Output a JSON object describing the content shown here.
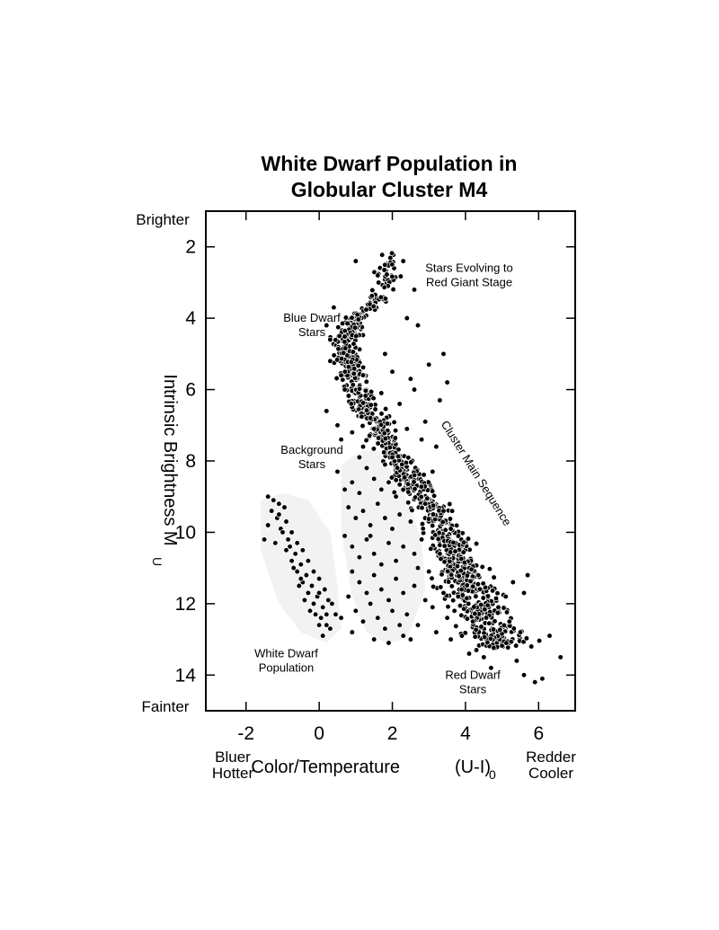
{
  "chart_data": {
    "type": "scatter",
    "title": [
      "White Dwarf Population in",
      "Globular Cluster M4"
    ],
    "xlabel": "Color/Temperature",
    "xlabel_var": "(U-I)",
    "xlabel_sub": "0",
    "ylabel": "Intrinsic Brightness  M",
    "ylabel_sub": "U",
    "xlim": [
      -3.1,
      7.0
    ],
    "ylim": [
      15.0,
      1.0
    ],
    "y_inverted": true,
    "x_ticks": [
      "-2",
      "0",
      "2",
      "4",
      "6"
    ],
    "y_ticks": [
      "2",
      "4",
      "6",
      "8",
      "10",
      "12",
      "14"
    ],
    "x_tick_values": [
      -2,
      0,
      2,
      4,
      6
    ],
    "y_tick_values": [
      2,
      4,
      6,
      8,
      10,
      12,
      14
    ],
    "grid": false,
    "legend": "none",
    "side_labels": {
      "top_left": "Brighter",
      "bottom_left": "Fainter",
      "left_x": [
        "Bluer",
        "Hotter"
      ],
      "right_x": [
        "Redder",
        "Cooler"
      ]
    },
    "regions": [
      {
        "name": "White Dwarf Population",
        "fill": "#f2f2f2",
        "outline": [
          [
            -1.6,
            9.1
          ],
          [
            -1.0,
            8.9
          ],
          [
            -0.3,
            9.1
          ],
          [
            0.3,
            10.0
          ],
          [
            0.5,
            11.5
          ],
          [
            0.6,
            12.7
          ],
          [
            0.2,
            13.1
          ],
          [
            -0.5,
            12.8
          ],
          [
            -1.1,
            12.0
          ],
          [
            -1.6,
            10.5
          ]
        ]
      },
      {
        "name": "Background Stars",
        "fill": "#f2f2f2",
        "outline": [
          [
            0.6,
            8.1
          ],
          [
            1.2,
            7.7
          ],
          [
            1.6,
            7.7
          ],
          [
            2.3,
            8.8
          ],
          [
            2.8,
            10.2
          ],
          [
            2.9,
            11.6
          ],
          [
            2.4,
            13.0
          ],
          [
            1.8,
            13.1
          ],
          [
            1.3,
            12.8
          ],
          [
            0.9,
            11.8
          ],
          [
            0.6,
            10.0
          ]
        ]
      }
    ],
    "annotations": [
      {
        "text": [
          "Stars Evolving to",
          "Red Giant Stage"
        ],
        "x": 4.1,
        "y": 2.7
      },
      {
        "text": [
          "Blue Dwarf",
          "Stars"
        ],
        "x": -0.2,
        "y": 4.1
      },
      {
        "text": [
          "Background",
          "Stars"
        ],
        "x": -0.2,
        "y": 7.8
      },
      {
        "text": [
          "Cluster Main Sequence"
        ],
        "x": 4.2,
        "y": 8.4,
        "rotation": 58
      },
      {
        "text": [
          "White Dwarf",
          "Population"
        ],
        "x": -0.9,
        "y": 13.5
      },
      {
        "text": [
          "Red Dwarf",
          "Stars"
        ],
        "x": 4.2,
        "y": 14.1
      }
    ],
    "marker_color": "#000000",
    "series": [
      {
        "name": "Cluster Main Sequence",
        "ridge": [
          [
            2.0,
            2.2
          ],
          [
            1.8,
            3.0
          ],
          [
            1.5,
            3.6
          ],
          [
            1.0,
            4.1
          ],
          [
            0.75,
            4.6
          ],
          [
            0.8,
            5.2
          ],
          [
            0.95,
            5.8
          ],
          [
            1.25,
            6.5
          ],
          [
            1.75,
            7.3
          ],
          [
            2.3,
            8.2
          ],
          [
            2.8,
            8.9
          ],
          [
            3.3,
            9.7
          ],
          [
            3.75,
            10.7
          ],
          [
            4.1,
            11.5
          ],
          [
            4.4,
            12.1
          ],
          [
            4.7,
            12.7
          ],
          [
            5.1,
            13.3
          ],
          [
            5.5,
            13.8
          ]
        ],
        "count": 1100,
        "spread": [
          [
            2.0,
            0.12
          ],
          [
            5.0,
            0.18
          ],
          [
            10.0,
            0.24
          ],
          [
            13.0,
            0.4
          ]
        ]
      },
      {
        "name": "White Dwarf Population",
        "points": [
          [
            -1.4,
            9.0
          ],
          [
            -1.25,
            9.1
          ],
          [
            -1.1,
            9.2
          ],
          [
            -1.3,
            9.4
          ],
          [
            -0.95,
            9.3
          ],
          [
            -1.15,
            9.6
          ],
          [
            -0.9,
            9.7
          ],
          [
            -1.4,
            9.8
          ],
          [
            -1.05,
            9.9
          ],
          [
            -0.75,
            10.0
          ],
          [
            -1.5,
            10.2
          ],
          [
            -0.85,
            10.2
          ],
          [
            -1.2,
            10.3
          ],
          [
            -0.6,
            10.3
          ],
          [
            -0.9,
            10.5
          ],
          [
            -0.65,
            10.6
          ],
          [
            -0.45,
            10.5
          ],
          [
            -0.75,
            10.8
          ],
          [
            -0.5,
            10.9
          ],
          [
            -0.3,
            10.8
          ],
          [
            -0.6,
            11.1
          ],
          [
            -0.35,
            11.2
          ],
          [
            -0.15,
            11.1
          ],
          [
            -0.45,
            11.4
          ],
          [
            -0.2,
            11.5
          ],
          [
            0.0,
            11.3
          ],
          [
            -0.3,
            11.7
          ],
          [
            -0.05,
            11.8
          ],
          [
            0.15,
            11.6
          ],
          [
            -0.15,
            12.0
          ],
          [
            0.1,
            12.1
          ],
          [
            0.25,
            11.9
          ],
          [
            -0.1,
            12.3
          ],
          [
            0.2,
            12.3
          ],
          [
            0.45,
            12.3
          ],
          [
            0.0,
            12.6
          ],
          [
            0.3,
            12.7
          ],
          [
            0.1,
            12.9
          ],
          [
            -1.0,
            10.0
          ],
          [
            -0.8,
            10.4
          ],
          [
            -0.55,
            11.5
          ],
          [
            -0.25,
            12.2
          ],
          [
            0.05,
            12.4
          ],
          [
            0.35,
            12.0
          ],
          [
            -0.7,
            11.0
          ],
          [
            -0.4,
            11.9
          ],
          [
            0.0,
            11.7
          ],
          [
            -1.1,
            9.5
          ],
          [
            -0.5,
            11.3
          ],
          [
            0.2,
            12.6
          ]
        ]
      },
      {
        "name": "Background Stars",
        "points": [
          [
            0.7,
            8.8
          ],
          [
            0.9,
            8.6
          ],
          [
            1.1,
            8.9
          ],
          [
            1.3,
            8.2
          ],
          [
            1.5,
            8.5
          ],
          [
            1.7,
            8.8
          ],
          [
            1.9,
            8.6
          ],
          [
            2.1,
            9.0
          ],
          [
            0.8,
            9.3
          ],
          [
            1.0,
            9.6
          ],
          [
            1.2,
            9.4
          ],
          [
            1.4,
            9.8
          ],
          [
            1.6,
            9.2
          ],
          [
            1.8,
            9.6
          ],
          [
            2.0,
            9.9
          ],
          [
            2.2,
            9.5
          ],
          [
            2.5,
            9.7
          ],
          [
            0.7,
            10.1
          ],
          [
            0.9,
            10.4
          ],
          [
            1.1,
            10.7
          ],
          [
            1.3,
            10.2
          ],
          [
            1.5,
            10.6
          ],
          [
            1.7,
            10.9
          ],
          [
            1.9,
            10.3
          ],
          [
            2.1,
            10.8
          ],
          [
            2.3,
            10.4
          ],
          [
            2.6,
            10.6
          ],
          [
            2.8,
            10.2
          ],
          [
            0.9,
            11.1
          ],
          [
            1.1,
            11.4
          ],
          [
            1.3,
            11.7
          ],
          [
            1.5,
            11.2
          ],
          [
            1.7,
            11.6
          ],
          [
            1.9,
            11.9
          ],
          [
            2.1,
            11.3
          ],
          [
            2.3,
            11.7
          ],
          [
            2.6,
            11.5
          ],
          [
            2.9,
            11.9
          ],
          [
            0.8,
            11.8
          ],
          [
            1.0,
            12.2
          ],
          [
            1.2,
            12.5
          ],
          [
            1.4,
            12.0
          ],
          [
            1.6,
            12.4
          ],
          [
            1.8,
            12.7
          ],
          [
            2.0,
            12.2
          ],
          [
            2.2,
            12.6
          ],
          [
            2.4,
            12.3
          ],
          [
            2.7,
            12.6
          ],
          [
            1.5,
            13.0
          ],
          [
            1.9,
            13.1
          ],
          [
            2.3,
            12.9
          ],
          [
            0.5,
            8.3
          ],
          [
            2.0,
            7.9
          ],
          [
            1.2,
            7.6
          ],
          [
            0.6,
            7.4
          ],
          [
            1.5,
            7.1
          ],
          [
            1.8,
            8.1
          ],
          [
            0.3,
            5.2
          ],
          [
            0.2,
            6.6
          ],
          [
            0.5,
            7.0
          ],
          [
            1.7,
            6.1
          ],
          [
            2.2,
            6.4
          ],
          [
            2.0,
            5.5
          ],
          [
            1.8,
            5.0
          ],
          [
            2.5,
            5.7
          ],
          [
            2.9,
            6.9
          ],
          [
            3.2,
            7.6
          ],
          [
            2.8,
            7.4
          ],
          [
            3.3,
            6.3
          ],
          [
            3.5,
            5.8
          ],
          [
            3.1,
            8.3
          ],
          [
            2.6,
            8.4
          ],
          [
            2.4,
            7.1
          ],
          [
            2.9,
            9.2
          ],
          [
            3.4,
            9.4
          ],
          [
            3.6,
            9.9
          ],
          [
            3.3,
            10.6
          ],
          [
            3.0,
            11.1
          ],
          [
            2.7,
            11.0
          ],
          [
            3.4,
            11.7
          ],
          [
            3.1,
            12.1
          ],
          [
            3.5,
            12.4
          ],
          [
            3.2,
            12.8
          ],
          [
            3.6,
            13.0
          ],
          [
            3.9,
            12.9
          ],
          [
            4.1,
            13.4
          ],
          [
            4.5,
            13.5
          ],
          [
            4.7,
            13.8
          ],
          [
            4.3,
            13.3
          ],
          [
            3.8,
            11.8
          ],
          [
            3.7,
            12.2
          ],
          [
            4.2,
            12.5
          ],
          [
            4.9,
            12.1
          ],
          [
            5.1,
            11.8
          ],
          [
            5.3,
            11.4
          ],
          [
            5.6,
            11.7
          ],
          [
            5.2,
            12.5
          ],
          [
            5.5,
            12.8
          ],
          [
            5.8,
            13.2
          ],
          [
            5.4,
            13.6
          ],
          [
            5.6,
            14.0
          ],
          [
            5.9,
            14.2
          ],
          [
            6.1,
            14.1
          ],
          [
            6.3,
            12.9
          ],
          [
            6.6,
            13.5
          ],
          [
            5.7,
            11.2
          ],
          [
            2.3,
            2.4
          ],
          [
            1.6,
            2.8
          ],
          [
            2.6,
            3.2
          ],
          [
            2.4,
            4.0
          ],
          [
            2.7,
            4.2
          ],
          [
            3.4,
            5.0
          ],
          [
            0.4,
            3.7
          ],
          [
            0.2,
            4.2
          ],
          [
            0.3,
            4.6
          ],
          [
            1.0,
            2.4
          ],
          [
            0.6,
            5.6
          ],
          [
            0.7,
            6.0
          ],
          [
            0.9,
            7.2
          ],
          [
            1.1,
            7.9
          ],
          [
            1.4,
            6.8
          ],
          [
            2.6,
            6.0
          ],
          [
            3.0,
            5.3
          ],
          [
            1.4,
            10.1
          ],
          [
            0.6,
            12.4
          ],
          [
            0.9,
            12.8
          ],
          [
            2.5,
            13.0
          ]
        ]
      }
    ]
  }
}
